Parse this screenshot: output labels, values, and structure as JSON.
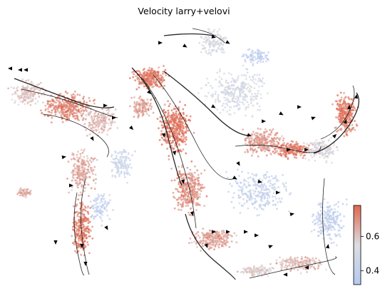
{
  "chart_data": {
    "type": "scatter",
    "title": "Velocity larry+velovi",
    "xlabel": "",
    "ylabel": "",
    "grid": false,
    "axes_visible": false,
    "overlay": "velocity streamlines with arrowheads",
    "colormap": {
      "name": "coolwarm",
      "low_color": "#b4c9f2",
      "mid_color": "#dcdde0",
      "high_color": "#e0674f",
      "range": [
        0.32,
        0.78
      ]
    },
    "colorbar": {
      "placement": "bottom-right",
      "ticks": [
        0.4,
        0.6
      ],
      "tick_labels": [
        "0.4",
        "0.6"
      ]
    },
    "colors": {
      "stream": "#000000",
      "background": "#ffffff"
    }
  }
}
